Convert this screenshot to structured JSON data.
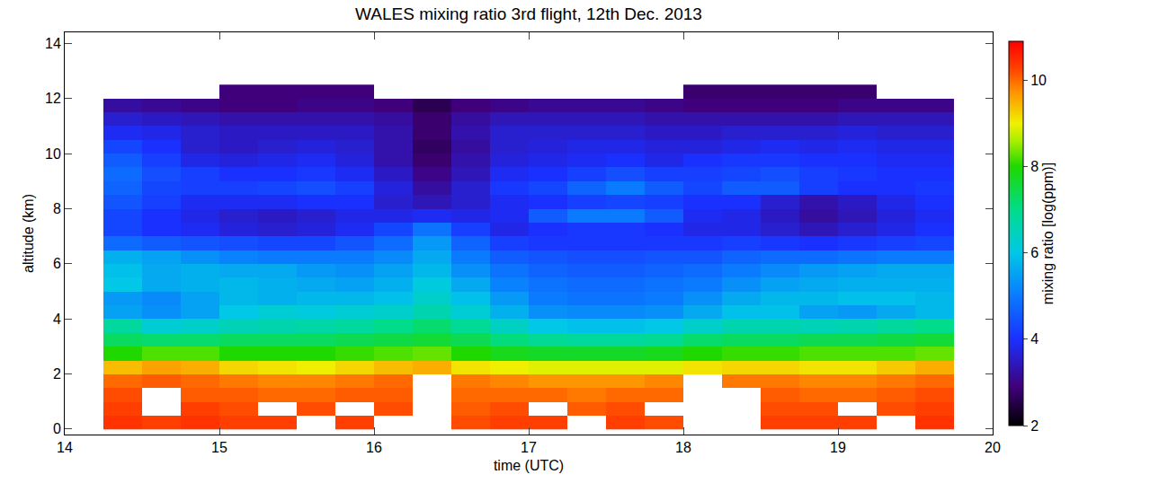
{
  "chart_data": {
    "type": "heatmap",
    "title": "WALES mixing ratio 3rd flight, 12th Dec. 2013",
    "x_label": "time (UTC)",
    "y_label": "altitude (km)",
    "colorbar_label": "mixing ratio [log(ppm)]",
    "x": [
      14.375,
      14.625,
      14.875,
      15.125,
      15.375,
      15.625,
      15.875,
      16.125,
      16.375,
      16.625,
      16.875,
      17.125,
      17.375,
      17.625,
      17.875,
      18.125,
      18.375,
      18.625,
      18.875,
      19.125,
      19.375,
      19.625
    ],
    "y": [
      0.25,
      0.75,
      1.25,
      1.75,
      2.25,
      2.75,
      3.25,
      3.75,
      4.25,
      4.75,
      5.25,
      5.75,
      6.25,
      6.75,
      7.25,
      7.75,
      8.25,
      8.75,
      9.25,
      9.75,
      10.25,
      10.75,
      11.25,
      11.75,
      12.25
    ],
    "z": [
      [
        10.4,
        10.3,
        10.4,
        10.3,
        10.3,
        null,
        10.3,
        null,
        null,
        10.2,
        10.3,
        10.3,
        null,
        10.3,
        10.2,
        null,
        null,
        10.3,
        10.3,
        10.3,
        null,
        10.4
      ],
      [
        10.3,
        null,
        10.3,
        10.2,
        null,
        10.2,
        null,
        10.2,
        null,
        10.1,
        10.2,
        null,
        10.1,
        10.2,
        null,
        null,
        null,
        10.2,
        10.2,
        null,
        10.2,
        10.3
      ],
      [
        10.2,
        null,
        10.1,
        10.1,
        10.0,
        10.0,
        10.1,
        10.1,
        null,
        10.0,
        10.0,
        10.0,
        9.9,
        10.0,
        10.0,
        null,
        null,
        10.1,
        10.0,
        10.0,
        10.1,
        10.2
      ],
      [
        10.0,
        10.1,
        10.0,
        9.9,
        9.8,
        9.8,
        9.9,
        10.0,
        null,
        9.9,
        9.8,
        9.7,
        9.7,
        9.7,
        9.8,
        null,
        9.9,
        9.9,
        9.8,
        9.8,
        9.9,
        10.0
      ],
      [
        9.4,
        9.6,
        9.5,
        9.2,
        9.1,
        9.0,
        9.2,
        9.4,
        9.5,
        9.1,
        9.0,
        8.9,
        8.9,
        8.9,
        8.9,
        9.1,
        9.2,
        9.2,
        9.1,
        9.1,
        9.3,
        9.5
      ],
      [
        8.0,
        8.2,
        8.2,
        8.0,
        8.0,
        8.0,
        8.1,
        8.2,
        8.3,
        8.0,
        7.8,
        7.7,
        7.7,
        7.7,
        7.8,
        8.0,
        8.1,
        8.1,
        8.2,
        8.2,
        8.2,
        8.3
      ],
      [
        7.3,
        7.2,
        7.2,
        7.3,
        7.3,
        7.3,
        7.4,
        7.5,
        7.6,
        7.4,
        7.1,
        6.9,
        6.8,
        6.8,
        6.9,
        7.2,
        7.3,
        7.3,
        7.4,
        7.4,
        7.5,
        7.6
      ],
      [
        6.8,
        6.2,
        6.3,
        6.5,
        6.6,
        6.7,
        6.8,
        7.0,
        7.2,
        6.9,
        6.4,
        6.0,
        5.9,
        5.9,
        6.0,
        6.3,
        6.6,
        6.6,
        6.5,
        6.6,
        6.8,
        7.0
      ],
      [
        5.5,
        5.3,
        5.5,
        6.0,
        6.2,
        6.1,
        6.2,
        6.3,
        6.6,
        6.2,
        5.7,
        5.3,
        5.2,
        5.2,
        5.3,
        5.6,
        5.9,
        5.9,
        5.5,
        5.4,
        5.6,
        5.8
      ],
      [
        5.4,
        5.2,
        5.5,
        5.8,
        5.7,
        5.8,
        5.8,
        5.9,
        6.3,
        5.9,
        5.4,
        5.0,
        4.9,
        4.9,
        5.0,
        5.3,
        5.6,
        5.8,
        5.8,
        5.9,
        5.9,
        5.8
      ],
      [
        6.0,
        5.6,
        5.7,
        5.8,
        5.7,
        5.6,
        5.5,
        5.7,
        6.1,
        5.6,
        5.1,
        4.9,
        4.8,
        4.8,
        4.9,
        5.0,
        5.3,
        5.5,
        5.6,
        5.7,
        5.7,
        5.7
      ],
      [
        5.9,
        5.6,
        5.7,
        5.6,
        5.6,
        5.4,
        5.3,
        5.5,
        5.8,
        5.3,
        4.9,
        4.7,
        4.6,
        4.6,
        4.7,
        4.8,
        5.0,
        5.2,
        5.4,
        5.5,
        5.6,
        5.6
      ],
      [
        5.7,
        5.5,
        5.3,
        5.1,
        5.0,
        5.0,
        5.0,
        5.2,
        5.6,
        5.0,
        4.6,
        4.5,
        4.4,
        4.4,
        4.5,
        4.5,
        4.7,
        4.8,
        4.8,
        4.9,
        5.0,
        5.0
      ],
      [
        4.8,
        4.6,
        4.5,
        4.4,
        4.3,
        4.3,
        4.5,
        4.8,
        5.4,
        4.7,
        4.2,
        4.1,
        4.1,
        4.1,
        4.1,
        4.1,
        4.2,
        4.1,
        4.0,
        4.1,
        4.2,
        4.3
      ],
      [
        4.3,
        4.0,
        3.9,
        3.7,
        3.6,
        3.7,
        3.9,
        4.3,
        4.9,
        4.2,
        3.8,
        4.0,
        4.1,
        4.1,
        4.0,
        3.8,
        3.8,
        3.6,
        3.4,
        3.6,
        3.8,
        4.0
      ],
      [
        4.3,
        4.0,
        3.8,
        3.6,
        3.5,
        3.6,
        3.8,
        3.8,
        3.9,
        3.8,
        3.9,
        4.6,
        5.0,
        5.0,
        4.6,
        3.9,
        3.8,
        3.5,
        3.2,
        3.4,
        3.7,
        3.9
      ],
      [
        4.5,
        4.2,
        3.9,
        3.9,
        3.9,
        4.0,
        4.0,
        3.6,
        3.4,
        3.6,
        3.9,
        4.0,
        4.2,
        4.3,
        4.2,
        4.0,
        4.0,
        3.6,
        3.3,
        3.5,
        3.8,
        4.0
      ],
      [
        4.7,
        4.3,
        4.2,
        4.2,
        4.3,
        4.4,
        4.2,
        3.7,
        3.2,
        3.6,
        4.1,
        4.3,
        4.7,
        5.0,
        4.6,
        4.3,
        4.6,
        4.6,
        4.2,
        4.0,
        4.0,
        4.1
      ],
      [
        4.8,
        4.4,
        4.2,
        4.0,
        4.0,
        4.1,
        3.9,
        3.5,
        3.0,
        3.4,
        3.9,
        4.0,
        4.2,
        4.4,
        4.2,
        4.2,
        4.3,
        4.4,
        4.2,
        4.1,
        4.0,
        4.0
      ],
      [
        4.6,
        4.2,
        3.8,
        3.7,
        3.8,
        3.9,
        3.7,
        3.3,
        2.8,
        3.3,
        3.7,
        3.8,
        3.9,
        4.0,
        3.8,
        4.0,
        4.1,
        4.1,
        4.0,
        4.0,
        3.9,
        3.9
      ],
      [
        4.3,
        4.0,
        3.6,
        3.5,
        3.6,
        3.7,
        3.6,
        3.3,
        2.7,
        3.2,
        3.6,
        3.7,
        3.8,
        3.8,
        3.7,
        3.7,
        3.8,
        3.9,
        3.8,
        3.9,
        3.8,
        3.8
      ],
      [
        3.9,
        3.8,
        3.6,
        3.5,
        3.5,
        3.5,
        3.5,
        3.3,
        2.8,
        3.3,
        3.6,
        3.6,
        3.6,
        3.6,
        3.5,
        3.5,
        3.6,
        3.6,
        3.6,
        3.7,
        3.6,
        3.6
      ],
      [
        3.6,
        3.5,
        3.4,
        3.3,
        3.3,
        3.3,
        3.3,
        3.2,
        2.8,
        3.2,
        3.4,
        3.4,
        3.4,
        3.4,
        3.3,
        3.3,
        3.3,
        3.3,
        3.3,
        3.4,
        3.4,
        3.4
      ],
      [
        3.2,
        3.1,
        3.0,
        2.9,
        2.9,
        3.0,
        3.0,
        2.9,
        2.6,
        2.9,
        3.0,
        3.1,
        3.1,
        3.1,
        3.0,
        2.9,
        2.9,
        2.9,
        2.9,
        3.0,
        3.0,
        3.0
      ],
      [
        null,
        null,
        null,
        2.9,
        2.9,
        2.9,
        2.9,
        null,
        null,
        null,
        null,
        null,
        null,
        null,
        null,
        2.8,
        2.8,
        2.8,
        2.8,
        2.8,
        null,
        null
      ]
    ],
    "xlim": [
      14,
      20
    ],
    "xticks": [
      14,
      15,
      16,
      17,
      18,
      19,
      20
    ],
    "ylim": [
      -0.2,
      14.4
    ],
    "yticks": [
      0,
      2,
      4,
      6,
      8,
      10,
      12,
      14
    ],
    "zlim": [
      2,
      10.9
    ],
    "zticks": [
      2,
      4,
      6,
      8,
      10
    ]
  }
}
